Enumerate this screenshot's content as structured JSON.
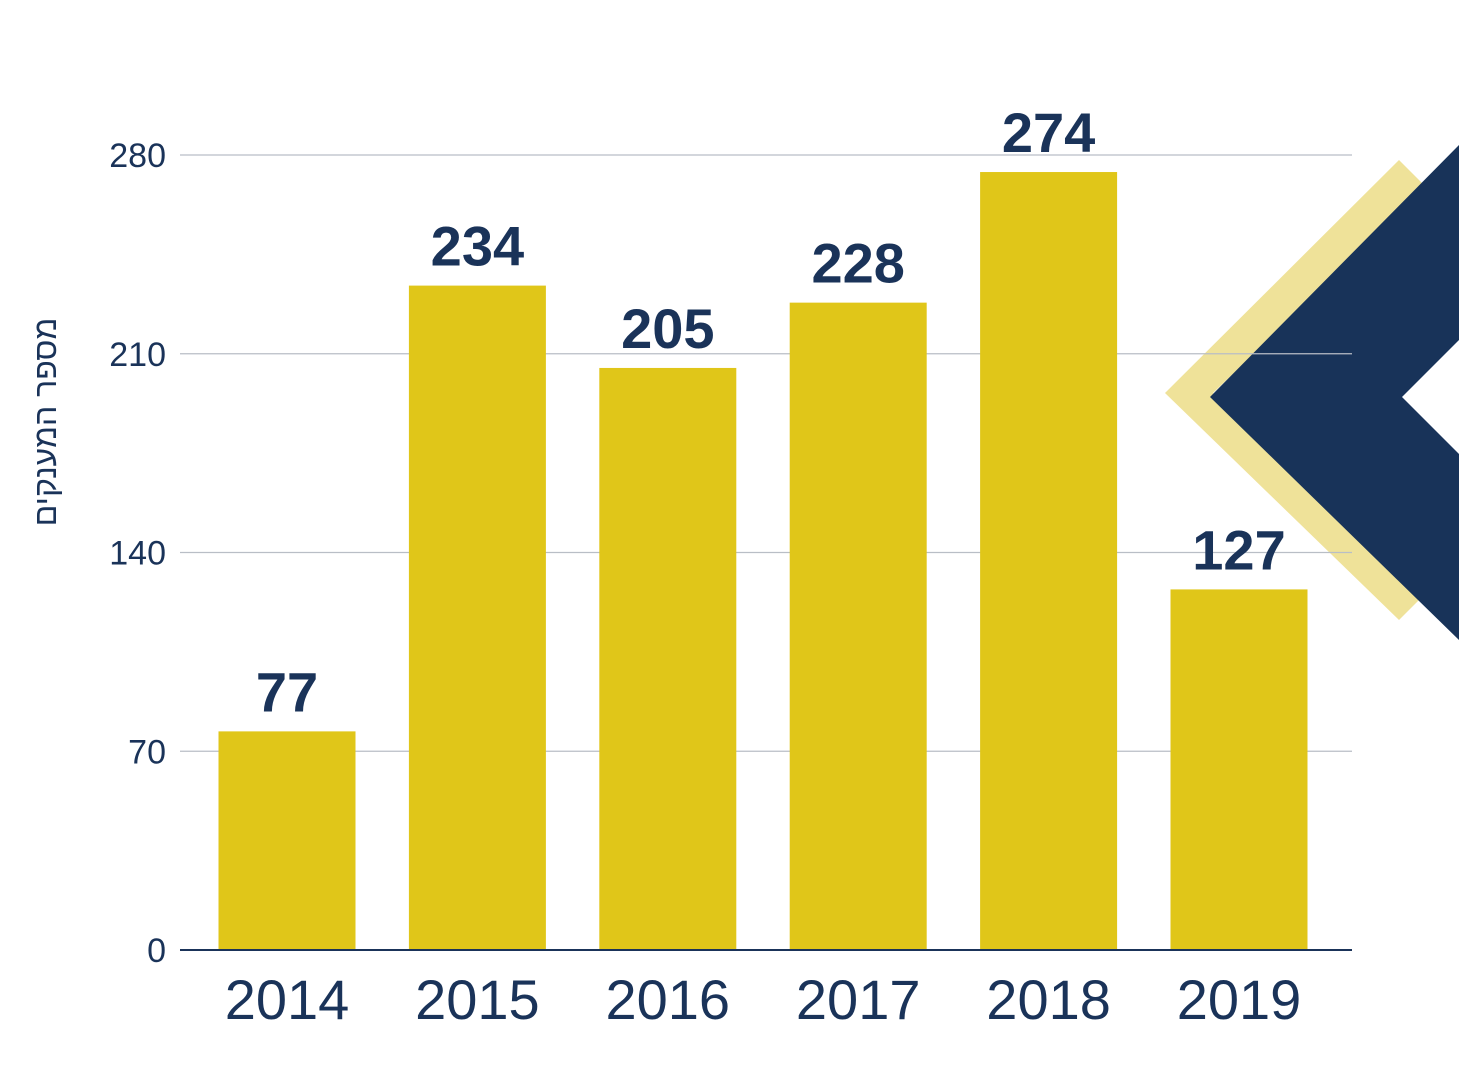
{
  "chart_data": {
    "type": "bar",
    "categories": [
      "2014",
      "2015",
      "2016",
      "2017",
      "2018",
      "2019"
    ],
    "values": [
      77,
      234,
      205,
      228,
      274,
      127
    ],
    "title": "",
    "xlabel": "",
    "ylabel": "מספר המענקים",
    "ylim": [
      0,
      280
    ],
    "yticks": [
      0,
      70,
      140,
      210,
      280
    ],
    "grid": true,
    "data_labels": true
  },
  "colors": {
    "bar": "#e0c619",
    "text": "#1a3359",
    "grid": "#b9bec6",
    "axis": "#1a3359",
    "decor_navy": "#183359",
    "decor_yellow": "#efe299"
  },
  "decoration": {
    "icon": "chevron-left-icon"
  }
}
